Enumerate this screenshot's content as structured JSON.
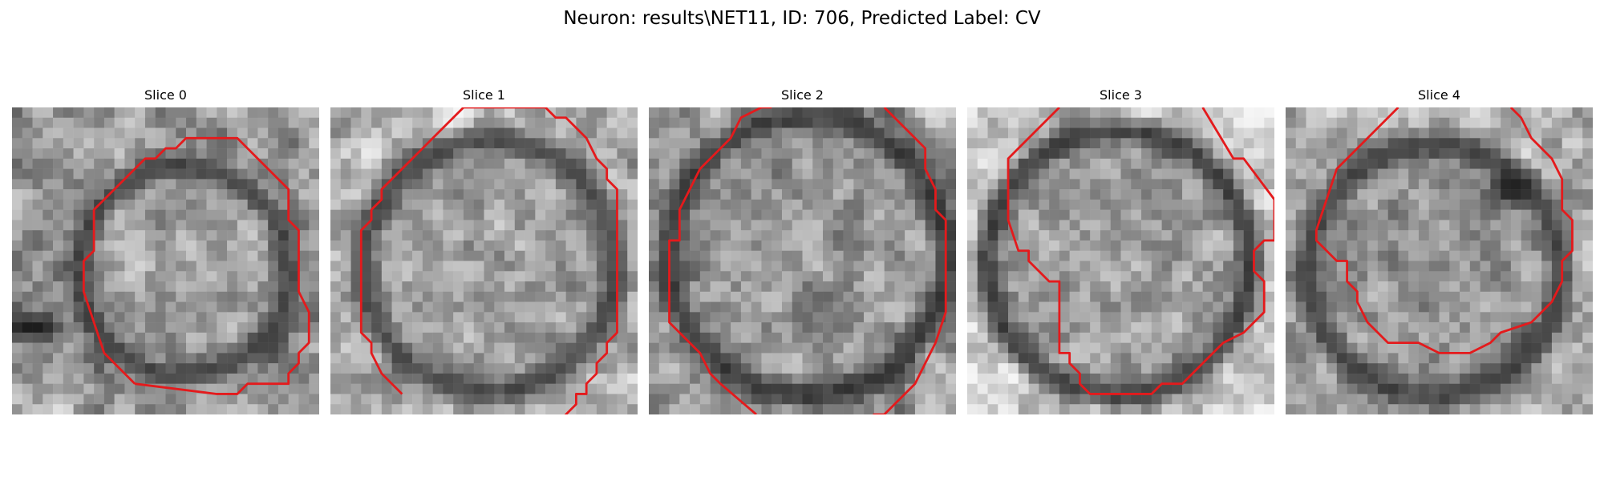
{
  "figure": {
    "title": "Neuron: results\\NET11, ID: 706, Predicted Label: CV",
    "contour_color": "#e41a1c"
  },
  "panels": [
    {
      "title": "Slice 0"
    },
    {
      "title": "Slice 1"
    },
    {
      "title": "Slice 2"
    },
    {
      "title": "Slice 3"
    },
    {
      "title": "Slice 4"
    }
  ]
}
